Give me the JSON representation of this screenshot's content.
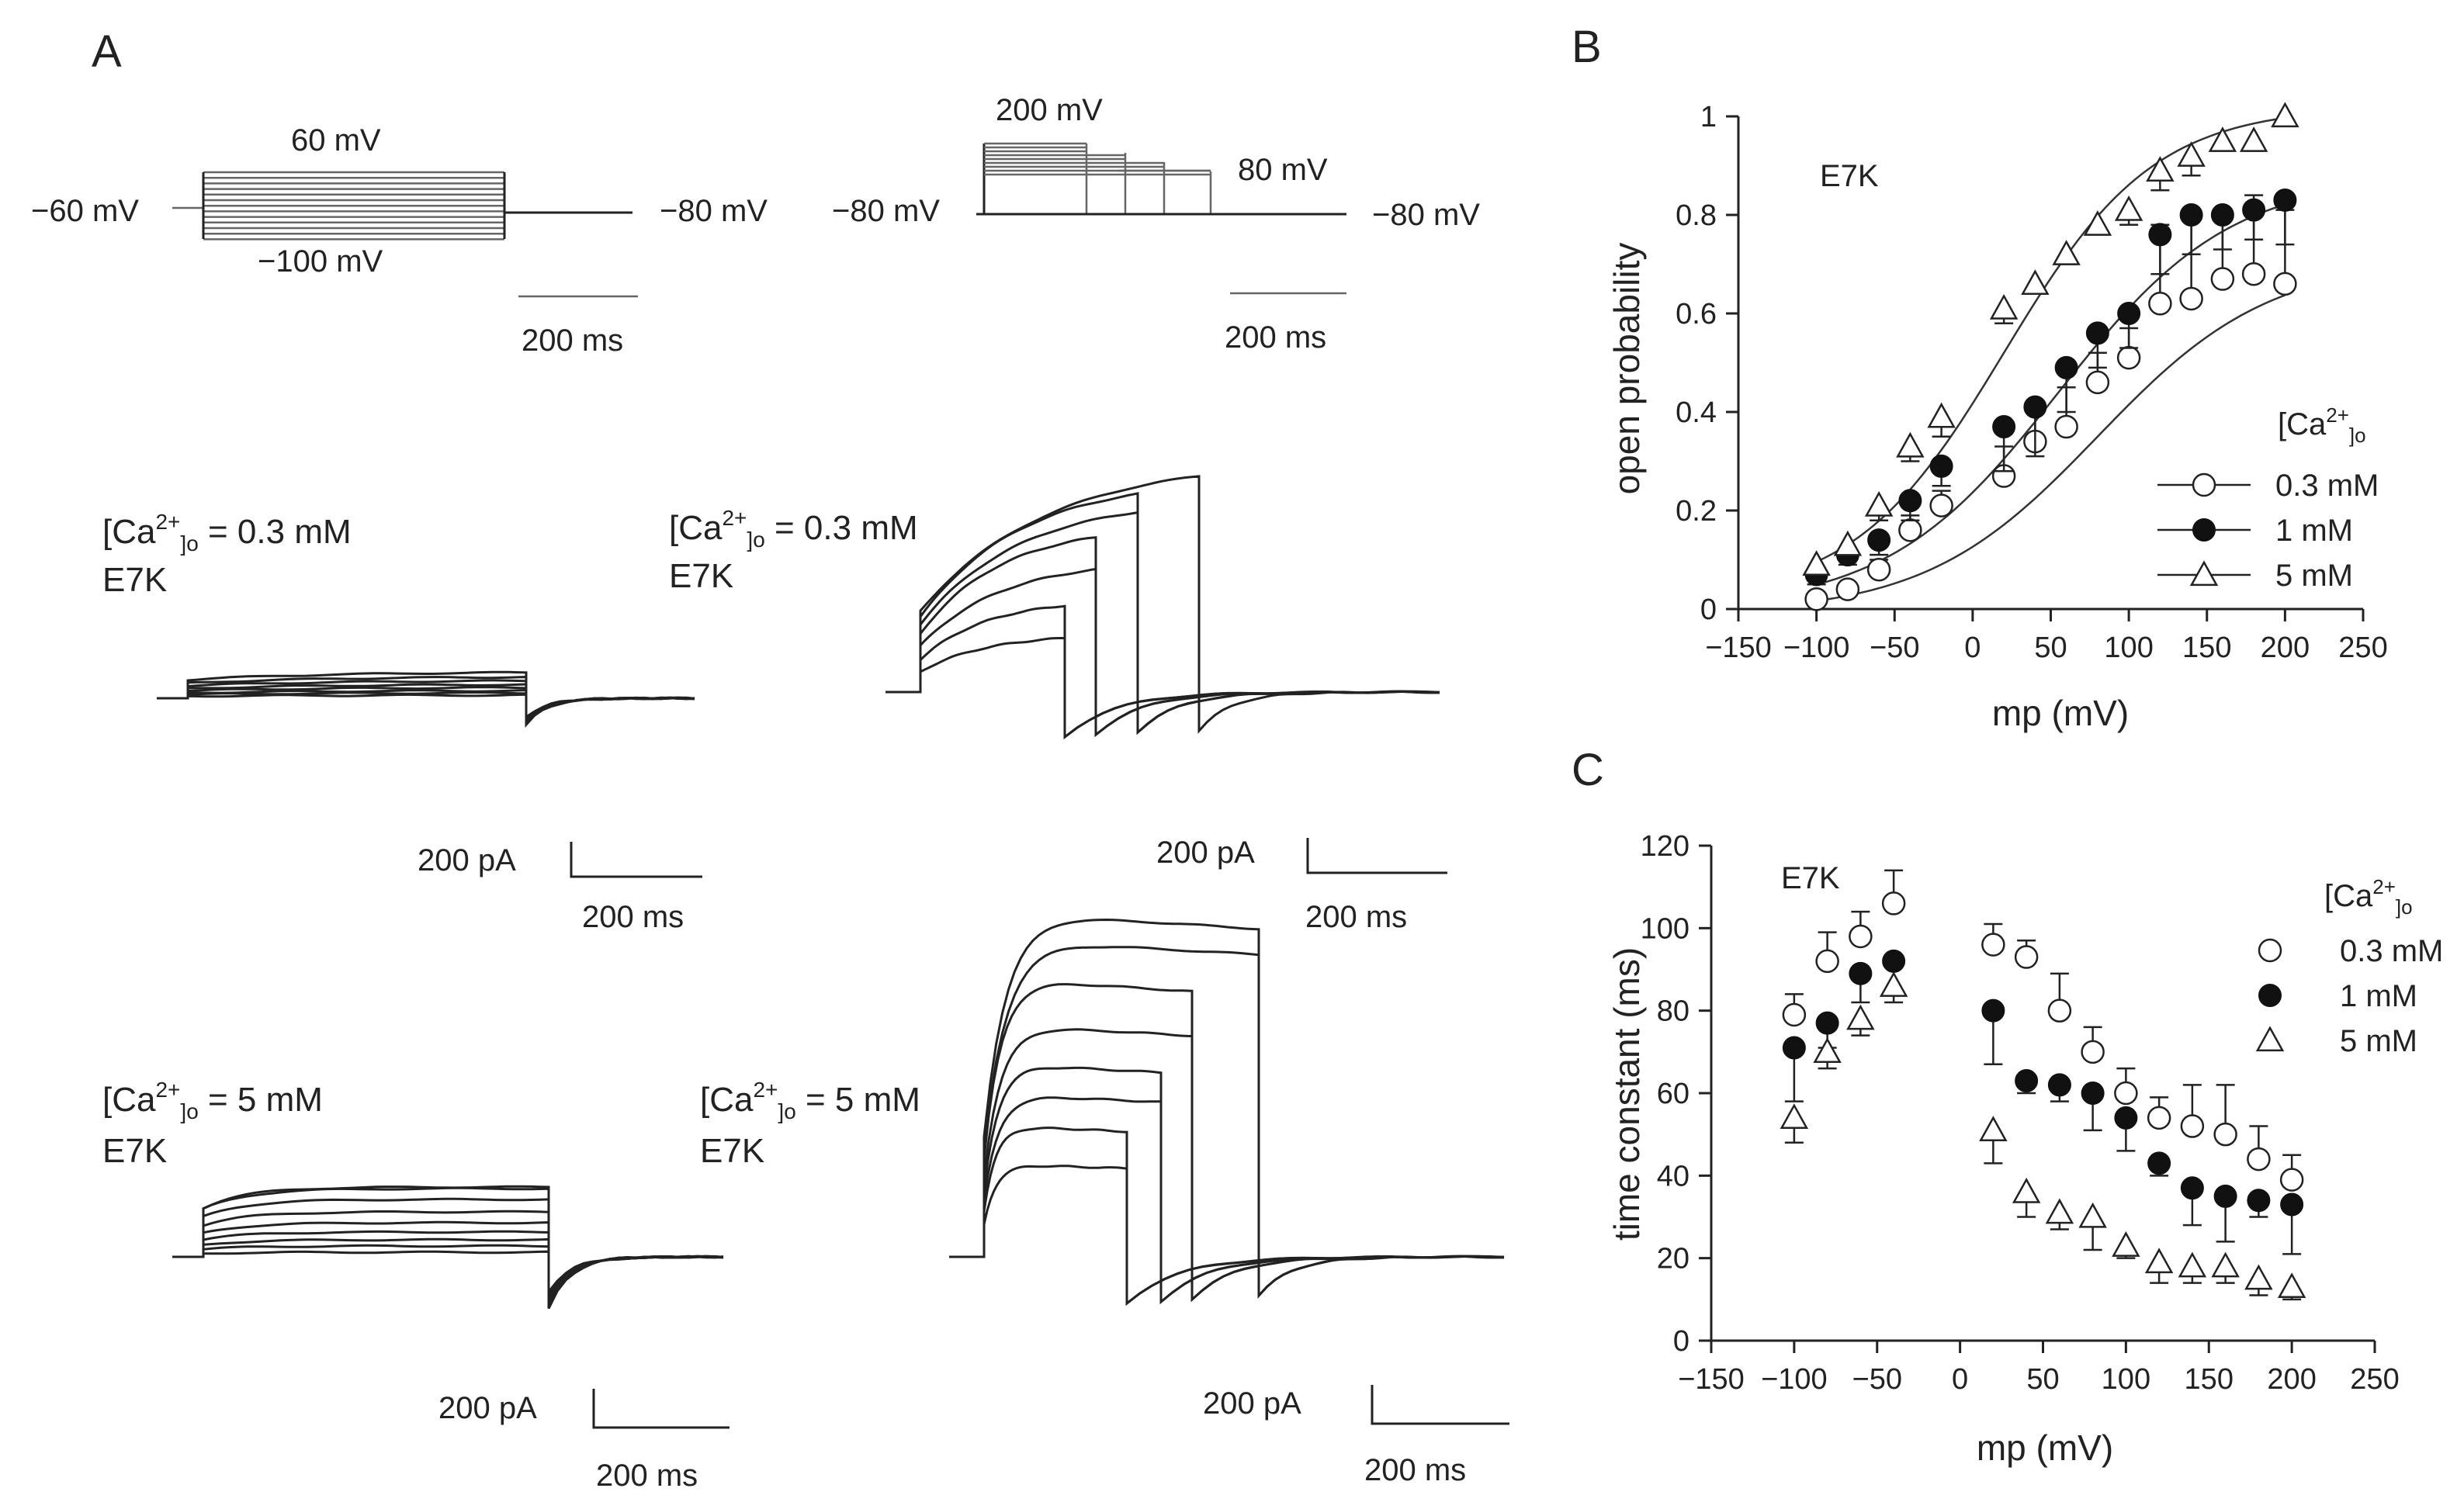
{
  "panels": {
    "A": {
      "label": "A",
      "protocol_left": {
        "hold": "−60 mV",
        "top": "60 mV",
        "bottom": "−100 mV",
        "tail": "−80 mV",
        "scale": "200 ms"
      },
      "protocol_right": {
        "hold": "−80 mV",
        "top": "200 mV",
        "tail_step": "80 mV",
        "tail": "−80 mV",
        "scale": "200 ms"
      },
      "traces": [
        {
          "title_pre": "[Ca",
          "title_sup": "2+",
          "title_sub": "]o",
          "title_post": " = 0.3 mM",
          "mutant": "E7K",
          "scale_i": "200 pA",
          "scale_t": "200 ms"
        },
        {
          "title_pre": "[Ca",
          "title_sup": "2+",
          "title_sub": "]o",
          "title_post": " = 0.3 mM",
          "mutant": "E7K",
          "scale_i": "200 pA",
          "scale_t": "200 ms"
        },
        {
          "title_pre": "[Ca",
          "title_sup": "2+",
          "title_sub": "]o",
          "title_post": " = 5 mM",
          "mutant": "E7K",
          "scale_i": "200 pA",
          "scale_t": "200 ms"
        },
        {
          "title_pre": "[Ca",
          "title_sup": "2+",
          "title_sub": "]o",
          "title_post": " = 5 mM",
          "mutant": "E7K",
          "scale_i": "200 pA",
          "scale_t": "200 ms"
        }
      ]
    },
    "B": {
      "label": "B"
    },
    "C": {
      "label": "C"
    }
  },
  "chart_data": [
    {
      "id": "B",
      "type": "scatter",
      "title": "E7K",
      "xlabel": "mp (mV)",
      "ylabel": "open probability",
      "xlim": [
        -150,
        250
      ],
      "ylim": [
        0,
        1
      ],
      "xticks": [
        -150,
        -100,
        -50,
        0,
        50,
        100,
        150,
        200,
        250
      ],
      "yticks": [
        0,
        0.2,
        0.4,
        0.6,
        0.8,
        1
      ],
      "ytick_labels": [
        "0",
        "0.2",
        "0.4",
        "0.6",
        "0.8",
        "1"
      ],
      "legend_title_pre": "[Ca",
      "legend_title_sup": "2+",
      "legend_title_sub": "]o",
      "legend_position": "lower-right",
      "fit_curves": true,
      "x": [
        -100,
        -80,
        -60,
        -40,
        -20,
        20,
        40,
        60,
        80,
        100,
        120,
        140,
        160,
        180,
        200
      ],
      "series": [
        {
          "name": "0.3 mM",
          "marker": "open-circle",
          "values": [
            0.02,
            0.04,
            0.08,
            0.16,
            0.21,
            0.27,
            0.34,
            0.37,
            0.46,
            0.51,
            0.62,
            0.63,
            0.67,
            0.68,
            0.66
          ],
          "errors": [
            0.01,
            0.01,
            0.02,
            0.03,
            0.03,
            0.06,
            0.07,
            0.08,
            0.06,
            0.06,
            0.16,
            0.16,
            0.14,
            0.16,
            0.15
          ]
        },
        {
          "name": "1 mM",
          "marker": "filled-circle",
          "values": [
            0.07,
            0.11,
            0.14,
            0.22,
            0.29,
            0.37,
            0.41,
            0.49,
            0.56,
            0.6,
            0.76,
            0.8,
            0.8,
            0.81,
            0.83
          ],
          "errors": [
            0.02,
            0.02,
            0.03,
            0.04,
            0.04,
            0.09,
            0.1,
            0.09,
            0.07,
            0.07,
            0.08,
            0.08,
            0.07,
            0.06,
            0.09
          ]
        },
        {
          "name": "5 mM",
          "marker": "open-triangle",
          "values": [
            0.09,
            0.13,
            0.21,
            0.33,
            0.39,
            0.61,
            0.66,
            0.72,
            0.78,
            0.81,
            0.89,
            0.92,
            0.95,
            0.95,
            1.0
          ],
          "errors": [
            0.02,
            0.02,
            0.03,
            0.03,
            0.04,
            0.03,
            0.02,
            0.02,
            0.02,
            0.03,
            0.04,
            0.04,
            0.02,
            0.02,
            0.01
          ]
        }
      ]
    },
    {
      "id": "C",
      "type": "scatter",
      "title": "E7K",
      "xlabel": "mp (mV)",
      "ylabel": "time constant (ms)",
      "xlim": [
        -150,
        250
      ],
      "ylim": [
        0,
        120
      ],
      "xticks": [
        -150,
        -100,
        -50,
        0,
        50,
        100,
        150,
        200,
        250
      ],
      "yticks": [
        0,
        20,
        40,
        60,
        80,
        100,
        120
      ],
      "ytick_labels": [
        "0",
        "20",
        "40",
        "60",
        "80",
        "100",
        "120"
      ],
      "legend_title_pre": "[Ca",
      "legend_title_sup": "2+",
      "legend_title_sub": "]o",
      "legend_position": "top-right",
      "fit_curves": false,
      "x": [
        -100,
        -80,
        -60,
        -40,
        20,
        40,
        60,
        80,
        100,
        120,
        140,
        160,
        180,
        200
      ],
      "series": [
        {
          "name": "0.3 mM",
          "marker": "open-circle",
          "values": [
            79,
            92,
            98,
            106,
            96,
            93,
            80,
            70,
            60,
            54,
            52,
            50,
            44,
            39
          ],
          "errors": [
            5,
            7,
            6,
            8,
            5,
            4,
            9,
            6,
            6,
            5,
            10,
            12,
            8,
            6
          ]
        },
        {
          "name": "1 mM",
          "marker": "filled-circle",
          "values": [
            71,
            77,
            89,
            92,
            80,
            63,
            62,
            60,
            54,
            43,
            37,
            35,
            34,
            33
          ],
          "errors": [
            13,
            6,
            7,
            8,
            13,
            3,
            4,
            9,
            8,
            3,
            9,
            11,
            4,
            12
          ]
        },
        {
          "name": "5 mM",
          "marker": "open-triangle",
          "values": [
            54,
            70,
            78,
            86,
            51,
            36,
            31,
            30,
            23,
            19,
            18,
            18,
            15,
            13
          ],
          "errors": [
            6,
            4,
            4,
            4,
            8,
            6,
            4,
            8,
            3,
            5,
            4,
            4,
            4,
            3
          ]
        }
      ]
    }
  ]
}
